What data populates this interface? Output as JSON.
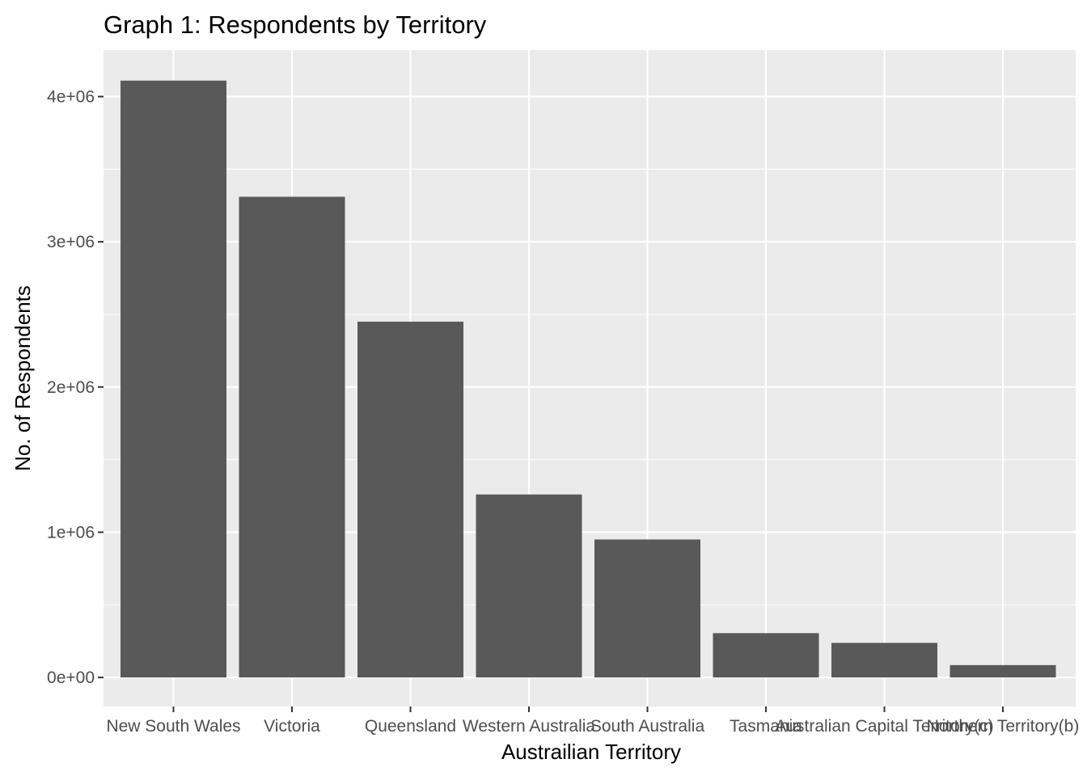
{
  "chart_data": {
    "type": "bar",
    "title": "Graph 1: Respondents by Territory",
    "xlabel": "Austrailian Territory",
    "ylabel": "No. of Respondents",
    "categories": [
      "New South Wales",
      "Victoria",
      "Queensland",
      "Western Australia",
      "South Australia",
      "Tasmania",
      "Australian Capital Territory(c)",
      "Northern Territory(b)"
    ],
    "values": [
      4110000,
      3310000,
      2450000,
      1260000,
      950000,
      305000,
      238000,
      85000
    ],
    "ylim": [
      -200000,
      4320000
    ],
    "yticks": [
      0,
      1000000,
      2000000,
      3000000,
      4000000
    ],
    "ytick_labels": [
      "0e+00",
      "1e+06",
      "2e+06",
      "3e+06",
      "4e+06"
    ],
    "grid": true,
    "colors": {
      "panel": "#ebebeb",
      "bar": "#595959",
      "grid": "#ffffff",
      "tick": "#333333"
    }
  }
}
